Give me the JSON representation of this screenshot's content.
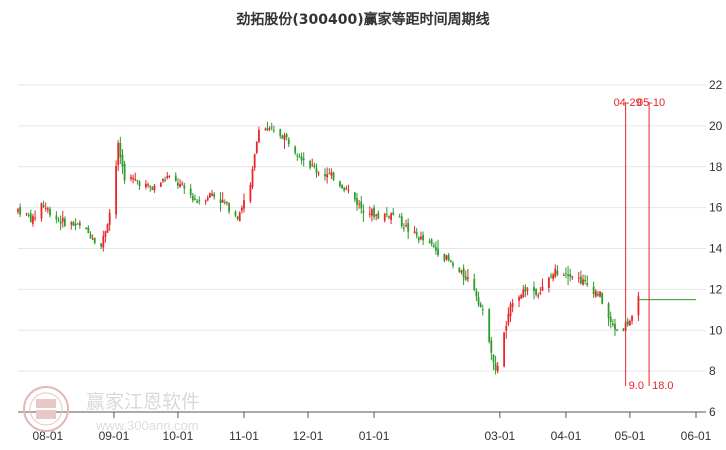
{
  "chart_data": {
    "type": "candlestick",
    "title": "劲拓股份(300400)赢家等距时间周期线",
    "ylim": [
      6,
      22
    ],
    "y_ticks": [
      "22",
      "20",
      "18",
      "16",
      "14",
      "12",
      "10",
      "8",
      "6"
    ],
    "x_ticks": [
      "08-01",
      "09-01",
      "10-01",
      "11-01",
      "12-01",
      "01-01",
      "03-01",
      "04-01",
      "05-01",
      "06-01"
    ],
    "grid": "horizontal",
    "colors": {
      "up": "#e8262a",
      "down": "#2e9b2e",
      "marker": "#e8262a",
      "grid": "#e6e6e6",
      "baseline": "#2e9b2e"
    },
    "price_path": [
      [
        "07-18",
        15.9
      ],
      [
        "07-25",
        15.4
      ],
      [
        "07-29",
        16.2
      ],
      [
        "08-06",
        15.4
      ],
      [
        "08-15",
        15.1
      ],
      [
        "08-22",
        14.6
      ],
      [
        "08-26",
        14.1
      ],
      [
        "08-31",
        16.2
      ],
      [
        "09-03",
        19.0
      ],
      [
        "09-06",
        17.5
      ],
      [
        "09-12",
        17.3
      ],
      [
        "09-19",
        16.9
      ],
      [
        "09-26",
        17.5
      ],
      [
        "10-03",
        17.0
      ],
      [
        "10-10",
        16.3
      ],
      [
        "10-17",
        16.7
      ],
      [
        "10-24",
        16.1
      ],
      [
        "10-29",
        15.6
      ],
      [
        "11-04",
        17.0
      ],
      [
        "11-08",
        20.0
      ],
      [
        "11-12",
        19.8
      ],
      [
        "11-20",
        19.5
      ],
      [
        "11-28",
        18.5
      ],
      [
        "12-05",
        17.8
      ],
      [
        "12-13",
        17.5
      ],
      [
        "12-20",
        16.8
      ],
      [
        "12-26",
        16.0
      ],
      [
        "01-03",
        15.6
      ],
      [
        "01-10",
        15.7
      ],
      [
        "01-18",
        14.8
      ],
      [
        "01-27",
        14.2
      ],
      [
        "02-03",
        13.6
      ],
      [
        "02-10",
        12.8
      ],
      [
        "02-16",
        12.4
      ],
      [
        "02-23",
        10.2
      ],
      [
        "02-27",
        7.9
      ],
      [
        "03-03",
        9.8
      ],
      [
        "03-07",
        11.5
      ],
      [
        "03-13",
        12.0
      ],
      [
        "03-20",
        11.9
      ],
      [
        "03-27",
        12.9
      ],
      [
        "04-03",
        12.8
      ],
      [
        "04-10",
        12.3
      ],
      [
        "04-17",
        11.7
      ],
      [
        "04-22",
        10.3
      ],
      [
        "04-26",
        9.9
      ],
      [
        "04-30",
        10.4
      ],
      [
        "05-03",
        10.6
      ],
      [
        "05-05",
        11.5
      ]
    ],
    "markers": [
      {
        "date": "04-29",
        "value": "9.0"
      },
      {
        "date": "05-10",
        "value": "18.0"
      }
    ],
    "marker_tops": [
      "04-29",
      "05-10"
    ],
    "baseline_level": 11.5
  },
  "watermark": {
    "logo_text": "赢家江恩软件",
    "url_text": "www.300ann.com"
  }
}
